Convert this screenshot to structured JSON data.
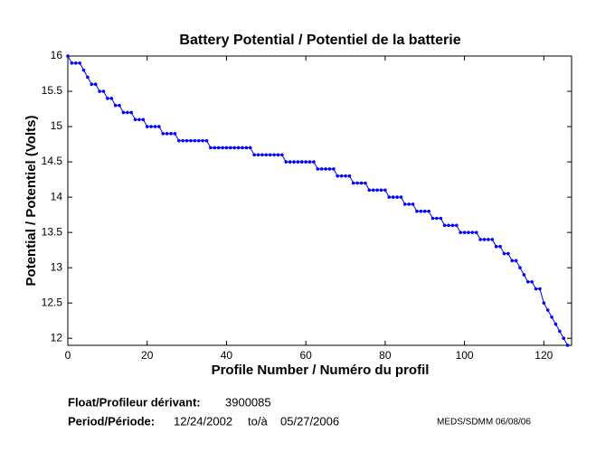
{
  "chart_data": {
    "type": "line",
    "title": "Battery Potential / Potentiel de la batterie",
    "xlabel": "Profile Number / Numéro du profil",
    "ylabel": "Potential / Potentiel (Volts)",
    "x": [
      0,
      1,
      2,
      3,
      4,
      5,
      6,
      7,
      8,
      9,
      10,
      11,
      12,
      13,
      14,
      15,
      16,
      17,
      18,
      19,
      20,
      21,
      22,
      23,
      24,
      25,
      26,
      27,
      28,
      29,
      30,
      31,
      32,
      33,
      34,
      35,
      36,
      37,
      38,
      39,
      40,
      41,
      42,
      43,
      44,
      45,
      46,
      47,
      48,
      49,
      50,
      51,
      52,
      53,
      54,
      55,
      56,
      57,
      58,
      59,
      60,
      61,
      62,
      63,
      64,
      65,
      66,
      67,
      68,
      69,
      70,
      71,
      72,
      73,
      74,
      75,
      76,
      77,
      78,
      79,
      80,
      81,
      82,
      83,
      84,
      85,
      86,
      87,
      88,
      89,
      90,
      91,
      92,
      93,
      94,
      95,
      96,
      97,
      98,
      99,
      100,
      101,
      102,
      103,
      104,
      105,
      106,
      107,
      108,
      109,
      110,
      111,
      112,
      113,
      114,
      115,
      116,
      117,
      118,
      119,
      120,
      121,
      122,
      123,
      124,
      125,
      126
    ],
    "series": [
      {
        "color": "#0000ff",
        "values": [
          16,
          15.9,
          15.9,
          15.9,
          15.8,
          15.7,
          15.6,
          15.6,
          15.5,
          15.5,
          15.4,
          15.4,
          15.3,
          15.3,
          15.2,
          15.2,
          15.2,
          15.1,
          15.1,
          15.1,
          15.0,
          15.0,
          15.0,
          15.0,
          14.9,
          14.9,
          14.9,
          14.9,
          14.8,
          14.8,
          14.8,
          14.8,
          14.8,
          14.8,
          14.8,
          14.8,
          14.7,
          14.7,
          14.7,
          14.7,
          14.7,
          14.7,
          14.7,
          14.7,
          14.7,
          14.7,
          14.7,
          14.6,
          14.6,
          14.6,
          14.6,
          14.6,
          14.6,
          14.6,
          14.6,
          14.5,
          14.5,
          14.5,
          14.5,
          14.5,
          14.5,
          14.5,
          14.5,
          14.4,
          14.4,
          14.4,
          14.4,
          14.4,
          14.3,
          14.3,
          14.3,
          14.3,
          14.2,
          14.2,
          14.2,
          14.2,
          14.1,
          14.1,
          14.1,
          14.1,
          14.1,
          14.0,
          14.0,
          14.0,
          14.0,
          13.9,
          13.9,
          13.9,
          13.8,
          13.8,
          13.8,
          13.8,
          13.7,
          13.7,
          13.7,
          13.6,
          13.6,
          13.6,
          13.6,
          13.5,
          13.5,
          13.5,
          13.5,
          13.5,
          13.4,
          13.4,
          13.4,
          13.4,
          13.3,
          13.3,
          13.2,
          13.2,
          13.1,
          13.1,
          13.0,
          12.9,
          12.8,
          12.8,
          12.7,
          12.7,
          12.5,
          12.4,
          12.3,
          12.2,
          12.1,
          12.0,
          11.9
        ]
      }
    ],
    "xlim": [
      0,
      127
    ],
    "xticks": [
      0,
      20,
      40,
      60,
      80,
      100,
      120
    ],
    "ylim": [
      11.9,
      16
    ],
    "yticks": [
      12,
      12.5,
      13,
      13.5,
      14,
      14.5,
      15,
      15.5,
      16
    ]
  },
  "footer": {
    "float_label": "Float/Profileur dérivant:",
    "float_id": "3900085",
    "period_label": "Period/Période:",
    "start": "12/24/2002",
    "to": "to/à",
    "end": "05/27/2006",
    "credit": "MEDS/SDMM  06/08/06"
  }
}
